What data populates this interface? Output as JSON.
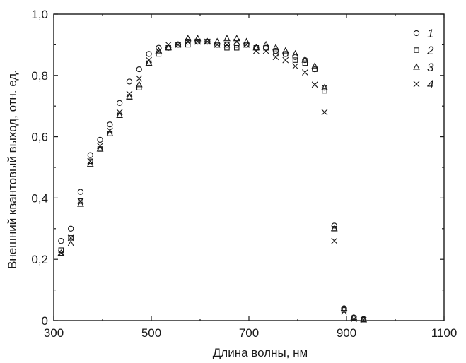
{
  "chart_data": {
    "type": "scatter",
    "xlabel": "Длина волны, нм",
    "ylabel": "Внешний квантовый выход, отн. ед.",
    "xlim": [
      300,
      1100
    ],
    "ylim": [
      0,
      1.0
    ],
    "x_ticks": [
      "300",
      "500",
      "700",
      "900",
      "1100"
    ],
    "y_ticks": [
      "0",
      "0,2",
      "0,4",
      "0,6",
      "0,8",
      "1,0"
    ],
    "grid": false,
    "legend_position": "top-right",
    "series": [
      {
        "name": "1",
        "marker": "circle",
        "x": [
          315,
          335,
          355,
          375,
          395,
          415,
          435,
          455,
          475,
          495,
          515,
          535,
          555,
          575,
          595,
          615,
          635,
          655,
          675,
          695,
          715,
          735,
          755,
          775,
          795,
          815,
          835,
          855,
          875,
          895,
          915,
          935
        ],
        "y": [
          0.26,
          0.3,
          0.42,
          0.54,
          0.59,
          0.64,
          0.71,
          0.78,
          0.82,
          0.87,
          0.89,
          0.89,
          0.9,
          0.91,
          0.91,
          0.91,
          0.9,
          0.9,
          0.9,
          0.9,
          0.89,
          0.89,
          0.88,
          0.87,
          0.86,
          0.85,
          0.82,
          0.76,
          0.31,
          0.04,
          0.01,
          0.005
        ]
      },
      {
        "name": "2",
        "marker": "square",
        "x": [
          315,
          335,
          355,
          375,
          395,
          415,
          435,
          455,
          475,
          495,
          515,
          535,
          555,
          575,
          595,
          615,
          635,
          655,
          675,
          695,
          715,
          735,
          755,
          775,
          795,
          815,
          835,
          855,
          875,
          895,
          915,
          935
        ],
        "y": [
          0.23,
          0.27,
          0.39,
          0.52,
          0.56,
          0.61,
          0.67,
          0.73,
          0.76,
          0.84,
          0.87,
          0.89,
          0.9,
          0.9,
          0.91,
          0.91,
          0.9,
          0.89,
          0.89,
          0.9,
          0.89,
          0.89,
          0.87,
          0.87,
          0.85,
          0.84,
          0.82,
          0.75,
          0.3,
          0.035,
          0.008,
          0.003
        ]
      },
      {
        "name": "3",
        "marker": "triangle",
        "x": [
          315,
          335,
          355,
          375,
          395,
          415,
          435,
          455,
          475,
          495,
          515,
          535,
          555,
          575,
          595,
          615,
          635,
          655,
          675,
          695,
          715,
          735,
          755,
          775,
          795,
          815,
          835,
          855,
          875,
          895,
          915,
          935
        ],
        "y": [
          0.22,
          0.25,
          0.38,
          0.51,
          0.56,
          0.61,
          0.67,
          0.73,
          0.77,
          0.84,
          0.88,
          0.89,
          0.9,
          0.92,
          0.92,
          0.91,
          0.91,
          0.92,
          0.92,
          0.91,
          0.89,
          0.9,
          0.89,
          0.88,
          0.87,
          0.85,
          0.83,
          0.76,
          0.3,
          0.04,
          0.01,
          0.003
        ]
      },
      {
        "name": "4",
        "marker": "cross",
        "x": [
          315,
          335,
          355,
          375,
          395,
          415,
          435,
          455,
          475,
          495,
          515,
          535,
          555,
          575,
          595,
          615,
          635,
          655,
          675,
          695,
          715,
          735,
          755,
          775,
          795,
          815,
          835,
          855,
          875,
          895,
          915,
          935
        ],
        "y": [
          0.22,
          0.27,
          0.39,
          0.52,
          0.57,
          0.62,
          0.68,
          0.74,
          0.79,
          0.85,
          0.88,
          0.9,
          0.9,
          0.91,
          0.91,
          0.91,
          0.9,
          0.9,
          0.91,
          0.9,
          0.88,
          0.88,
          0.86,
          0.85,
          0.83,
          0.81,
          0.77,
          0.68,
          0.26,
          0.03,
          0.005,
          0.002
        ]
      }
    ]
  }
}
